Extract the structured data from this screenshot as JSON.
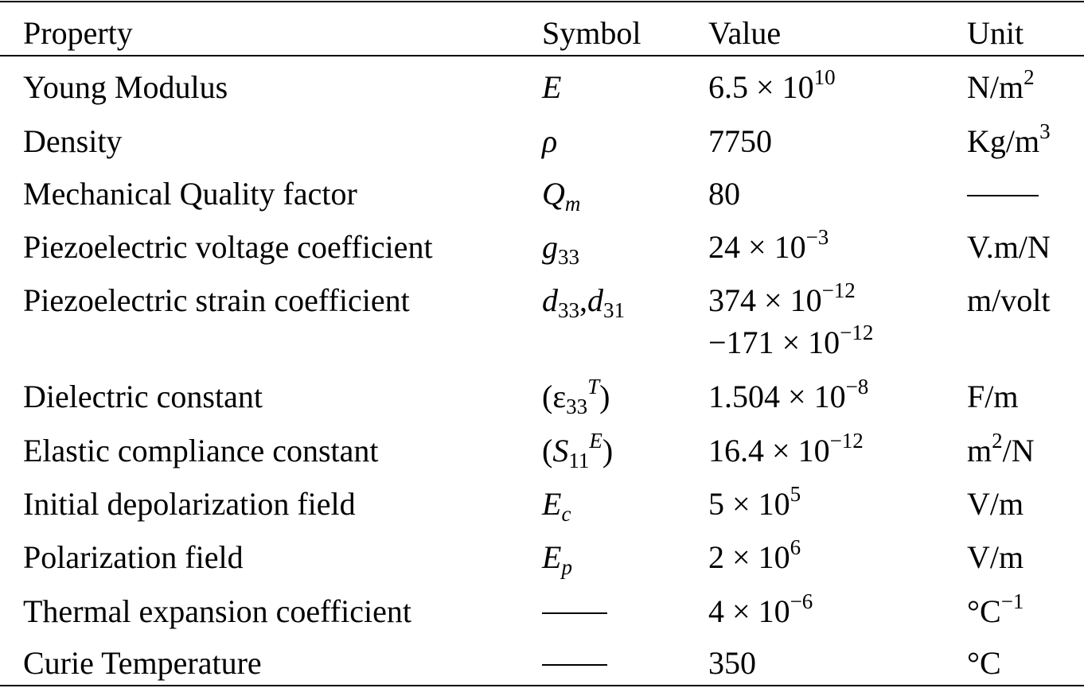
{
  "table": {
    "headers": {
      "property": "Property",
      "symbol": "Symbol",
      "value": "Value",
      "unit": "Unit"
    },
    "rows": [
      {
        "property": "Young Modulus",
        "symbol": {
          "base": "E",
          "sub": "",
          "sup": ""
        },
        "value": {
          "mantissa": "6.5",
          "exp": "10"
        },
        "unit": {
          "base": "N/m",
          "sup": "2",
          "tail": ""
        }
      },
      {
        "property": "Density",
        "symbol": {
          "base": "ρ",
          "sub": "",
          "sup": ""
        },
        "value": {
          "plain": "7750"
        },
        "unit": {
          "base": "Kg/m",
          "sup": "3",
          "tail": ""
        }
      },
      {
        "property": "Mechanical Quality factor",
        "symbol": {
          "base": "Q",
          "sub": "m",
          "sup": ""
        },
        "value": {
          "plain": "80"
        },
        "unit": {
          "dash": true
        }
      },
      {
        "property": "Piezoelectric voltage coefficient",
        "symbol": {
          "base": "g",
          "sub": "33",
          "sup": ""
        },
        "value": {
          "mantissa": "24",
          "exp": "−3"
        },
        "unit": {
          "base": "V.m/N",
          "sup": "",
          "tail": ""
        }
      },
      {
        "property": "Piezoelectric strain coefficient",
        "symbol": {
          "base": "d",
          "sub": "33",
          "sep": ",",
          "base2": "d",
          "sub2": "31"
        },
        "value": {
          "mantissa": "374",
          "exp": "−12",
          "mantissa2": "−171",
          "exp2": "−12"
        },
        "unit": {
          "base": "m/volt",
          "sup": "",
          "tail": ""
        }
      },
      {
        "property": "Dielectric constant",
        "symbol": {
          "base": "ε",
          "sub": "33",
          "sup": "T"
        },
        "value": {
          "mantissa": "1.504",
          "exp": "−8"
        },
        "unit": {
          "base": "F/m",
          "sup": "",
          "tail": ""
        }
      },
      {
        "property": "Elastic compliance constant",
        "symbol": {
          "base": "S",
          "sub": "11",
          "sup": "E"
        },
        "value": {
          "mantissa": "16.4",
          "exp": "−12"
        },
        "unit": {
          "base": "m",
          "sup": "2",
          "tail": "/N"
        }
      },
      {
        "property": "Initial depolarization field",
        "symbol": {
          "base": "E",
          "sub": "c",
          "sup": ""
        },
        "value": {
          "mantissa": "5",
          "exp": "5"
        },
        "unit": {
          "base": "V/m",
          "sup": "",
          "tail": ""
        }
      },
      {
        "property": "Polarization field",
        "symbol": {
          "base": "E",
          "sub": "p",
          "sup": ""
        },
        "value": {
          "mantissa": "2",
          "exp": "6"
        },
        "unit": {
          "base": "V/m",
          "sup": "",
          "tail": ""
        }
      },
      {
        "property": "Thermal expansion coefficient",
        "symbol": {
          "dash": true
        },
        "value": {
          "mantissa": "4",
          "exp": "−6"
        },
        "unit": {
          "base": "°C",
          "sup": "−1",
          "tail": ""
        }
      },
      {
        "property": "Curie Temperature",
        "symbol": {
          "dash": true
        },
        "value": {
          "plain": "350"
        },
        "unit": {
          "base": "°C",
          "sup": "",
          "tail": ""
        }
      }
    ],
    "times_sign": "×",
    "ten": "10"
  }
}
